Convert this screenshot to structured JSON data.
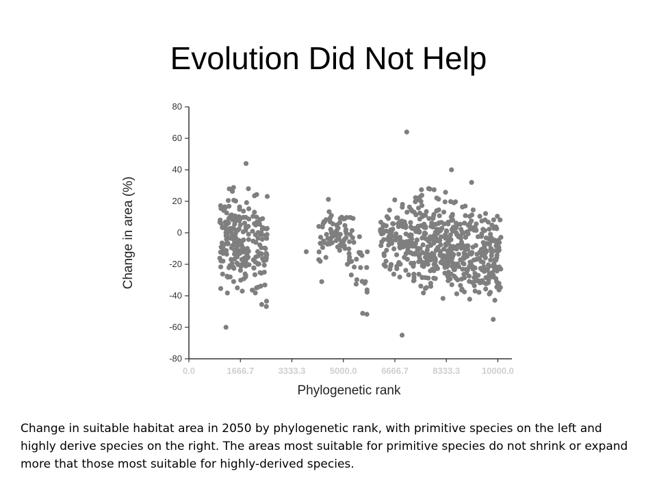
{
  "slide": {
    "title": "Evolution Did Not Help",
    "caption": "Change in suitable habitat area in 2050 by phylogenetic rank, with primitive species on the left and highly derive species on the right. The areas most suitable for primitive species do not shrink or expand more that those most suitable for highly-derived species."
  },
  "chart_data": {
    "type": "scatter",
    "xlabel": "Phylogenetic rank",
    "ylabel": "Change in area (%)",
    "xlim": [
      0,
      10500
    ],
    "ylim": [
      -80,
      80
    ],
    "x_ticks": [
      "0.0",
      "1666.7",
      "3333.3",
      "5000.0",
      "6666.7",
      "8333.3",
      "10000.0"
    ],
    "y_ticks": [
      "80",
      "60",
      "40",
      "20",
      "0",
      "-20",
      "-40",
      "-60",
      "-80"
    ],
    "grid": false,
    "marker_color": "#7f7f7f",
    "notable_points": [
      {
        "x": 1850,
        "y": 44
      },
      {
        "x": 7050,
        "y": 64
      },
      {
        "x": 6900,
        "y": -65
      },
      {
        "x": 1200,
        "y": -60
      },
      {
        "x": 9850,
        "y": -55
      },
      {
        "x": 8500,
        "y": 40
      },
      {
        "x": 9150,
        "y": 32
      },
      {
        "x": 3800,
        "y": -12
      },
      {
        "x": 4300,
        "y": -31
      }
    ],
    "clusters": [
      {
        "x_range": [
          1000,
          1950
        ],
        "y_center": -5,
        "y_spread": 18,
        "count": 160
      },
      {
        "x_range": [
          2050,
          2550
        ],
        "y_center": -10,
        "y_spread": 20,
        "count": 70
      },
      {
        "x_range": [
          4200,
          5100
        ],
        "y_center": 0,
        "y_spread": 10,
        "count": 70
      },
      {
        "x_range": [
          5100,
          5800
        ],
        "y_center": -15,
        "y_spread": 18,
        "count": 35
      },
      {
        "x_range": [
          6200,
          7200
        ],
        "y_center": -4,
        "y_spread": 14,
        "count": 110
      },
      {
        "x_range": [
          7200,
          8600
        ],
        "y_center": -8,
        "y_spread": 18,
        "count": 260
      },
      {
        "x_range": [
          8600,
          9600
        ],
        "y_center": -12,
        "y_spread": 16,
        "count": 140
      },
      {
        "x_range": [
          9600,
          10100
        ],
        "y_center": -14,
        "y_spread": 18,
        "count": 80
      }
    ]
  }
}
